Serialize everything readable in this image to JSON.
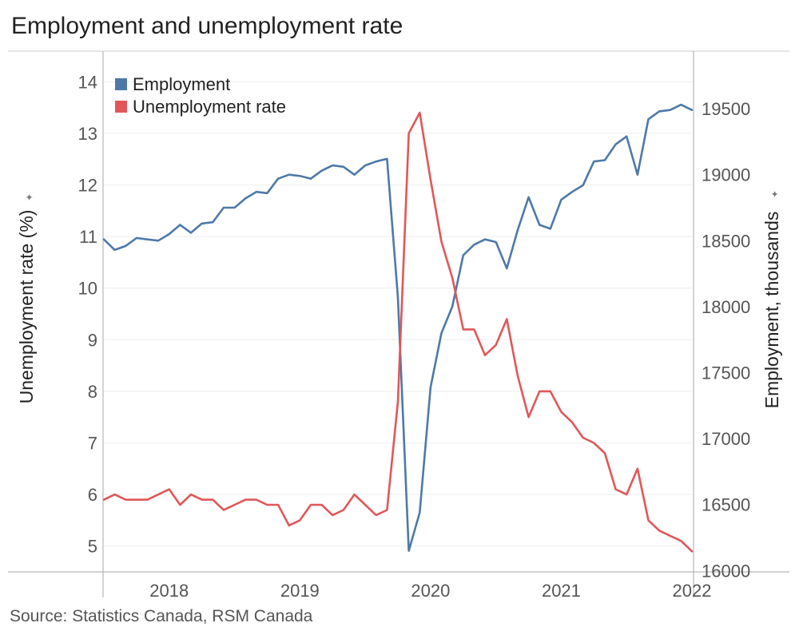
{
  "title": "Employment and unemployment rate",
  "source": "Source: Statistics Canada, RSM Canada",
  "chart_data": {
    "type": "line",
    "x_axis": {
      "ticks": [
        "2018",
        "2019",
        "2020",
        "2021",
        "2022"
      ],
      "start": "2018-01",
      "end": "2022-07"
    },
    "y_left": {
      "label": "Unemployment rate (%)",
      "min": 4.5,
      "max": 14.5,
      "ticks": [
        5,
        6,
        7,
        8,
        9,
        10,
        11,
        12,
        13,
        14
      ]
    },
    "y_right": {
      "label": "Employment, thousands",
      "min": 15990,
      "max": 19900,
      "ticks": [
        16000,
        16500,
        17000,
        17500,
        18000,
        18500,
        19000,
        19500
      ]
    },
    "legend": {
      "position": "top-left"
    },
    "grid": true,
    "x": [
      "2018-01",
      "2018-02",
      "2018-03",
      "2018-04",
      "2018-05",
      "2018-06",
      "2018-07",
      "2018-08",
      "2018-09",
      "2018-10",
      "2018-11",
      "2018-12",
      "2019-01",
      "2019-02",
      "2019-03",
      "2019-04",
      "2019-05",
      "2019-06",
      "2019-07",
      "2019-08",
      "2019-09",
      "2019-10",
      "2019-11",
      "2019-12",
      "2020-01",
      "2020-02",
      "2020-03",
      "2020-04",
      "2020-05",
      "2020-06",
      "2020-07",
      "2020-08",
      "2020-09",
      "2020-10",
      "2020-11",
      "2020-12",
      "2021-01",
      "2021-02",
      "2021-03",
      "2021-04",
      "2021-05",
      "2021-06",
      "2021-07",
      "2021-08",
      "2021-09",
      "2021-10",
      "2021-11",
      "2021-12",
      "2022-01",
      "2022-02",
      "2022-03",
      "2022-04",
      "2022-05",
      "2022-06",
      "2022-07"
    ],
    "series": [
      {
        "name": "Employment",
        "axis": "right",
        "color": "#4e79a7",
        "values": [
          18510,
          18430,
          18460,
          18520,
          18510,
          18500,
          18550,
          18620,
          18560,
          18630,
          18640,
          18750,
          18750,
          18820,
          18870,
          18860,
          18970,
          19000,
          18990,
          18970,
          19030,
          19070,
          19060,
          19000,
          19070,
          19100,
          19120,
          18070,
          16150,
          16440,
          17390,
          17800,
          18000,
          18390,
          18470,
          18510,
          18490,
          18290,
          18580,
          18830,
          18620,
          18590,
          18810,
          18870,
          18920,
          19100,
          19110,
          19230,
          19290,
          19000,
          19420,
          19480,
          19490,
          19530,
          19490
        ]
      },
      {
        "name": "Unemployment rate",
        "axis": "left",
        "color": "#e15759",
        "values": [
          5.9,
          6.0,
          5.9,
          5.9,
          5.9,
          6.0,
          6.1,
          5.8,
          6.0,
          5.9,
          5.9,
          5.7,
          5.8,
          5.9,
          5.9,
          5.8,
          5.8,
          5.4,
          5.5,
          5.8,
          5.8,
          5.6,
          5.7,
          6.0,
          5.8,
          5.6,
          5.7,
          7.8,
          13.0,
          13.4,
          12.1,
          10.9,
          10.2,
          9.2,
          9.2,
          8.7,
          8.9,
          9.4,
          8.3,
          7.5,
          8.0,
          8.0,
          7.6,
          7.4,
          7.1,
          7.0,
          6.8,
          6.1,
          6.0,
          6.5,
          5.5,
          5.3,
          5.2,
          5.1,
          4.9
        ]
      }
    ]
  }
}
